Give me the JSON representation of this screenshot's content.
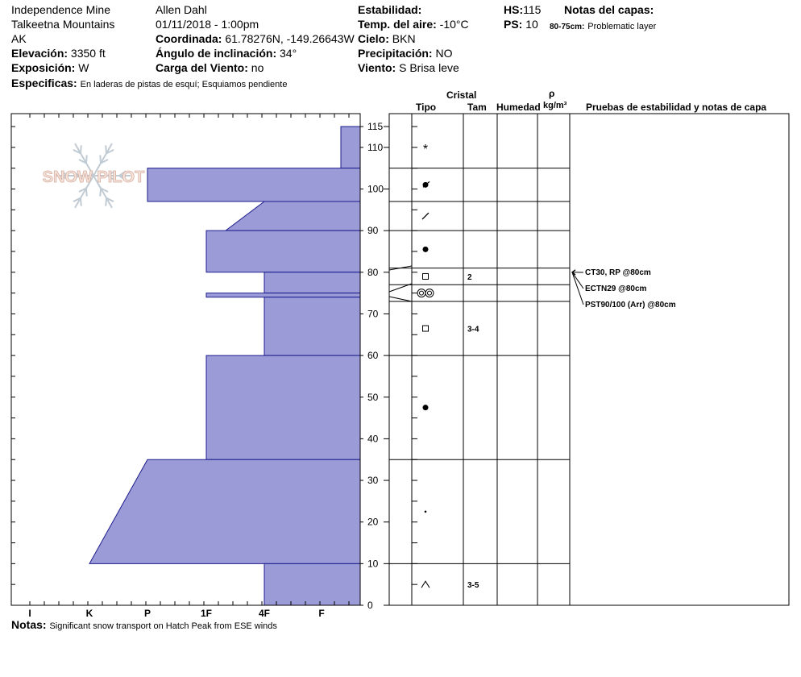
{
  "header": {
    "location": "Independence Mine",
    "range": "Talkeetna Mountains",
    "state": "AK",
    "observer": "Allen Dahl",
    "datetime": "01/11/2018 - 1:00pm",
    "elevation_label": "Elevación:",
    "elevation_value": "3350 ft",
    "aspect_label": "Exposición:",
    "aspect_value": "W",
    "specifics_label": "Especificas:",
    "specifics_value": "En laderas de pistas de esquí; Esquiamos pendiente",
    "coord_label": "Coordinada:",
    "coord_value": "61.78276N, -149.26643W",
    "slope_label": "Ángulo de inclinación:",
    "slope_value": "34°",
    "wind_load_label": "Carga del Viento:",
    "wind_load_value": "no",
    "stability_label": "Estabilidad:",
    "air_temp_label": "Temp. del aire:",
    "air_temp_value": "-10°C",
    "sky_label": "Cielo:",
    "sky_value": "BKN",
    "precip_label": "Precipitación:",
    "precip_value": "NO",
    "wind_label": "Viento:",
    "wind_value": "S Brisa leve",
    "hs_label": "HS:",
    "hs_value": "115",
    "ps_label": "PS:",
    "ps_value": "10",
    "layer_notes_label": "Notas del capas:",
    "layer_note_range": "80-75cm:",
    "layer_note_text": "Problematic layer"
  },
  "footer": {
    "notes_label": "Notas:",
    "notes_value": "Significant snow transport on Hatch Peak from ESE winds"
  },
  "logo_text": "SNOW PILOT",
  "columns": {
    "cristal": "Cristal",
    "tipo": "Tipo",
    "tam": "Tam",
    "humedad": "Humedad",
    "rho": "ρ",
    "rho_unit": "kg/m³",
    "tests": "Pruebas de estabilidad y notas de capa"
  },
  "colors": {
    "hardness_fill": "#9b9bd8",
    "hardness_stroke": "#1c1c8c"
  },
  "chart_data": {
    "type": "area",
    "x_axis": {
      "categories": [
        "I",
        "K",
        "P",
        "1F",
        "4F",
        "F"
      ]
    },
    "y_axis": {
      "range": [
        0,
        115
      ],
      "ticks": [
        0,
        10,
        20,
        30,
        40,
        50,
        60,
        70,
        80,
        90,
        100,
        110,
        115
      ]
    },
    "hardness_profile": [
      {
        "top": 115,
        "bottom": 105,
        "hardness": "F+"
      },
      {
        "top": 105,
        "bottom": 97,
        "hardness": "P"
      },
      {
        "top": 97,
        "bottom": 90,
        "hardness_top": "4F",
        "hardness_bottom": "1F+"
      },
      {
        "top": 90,
        "bottom": 80,
        "hardness": "1F"
      },
      {
        "top": 80,
        "bottom": 75,
        "hardness": "4F"
      },
      {
        "top": 75,
        "bottom": 74,
        "hardness": "1F"
      },
      {
        "top": 74,
        "bottom": 60,
        "hardness": "4F"
      },
      {
        "top": 60,
        "bottom": 35,
        "hardness": "1F"
      },
      {
        "top": 35,
        "bottom": 10,
        "hardness_top": "P",
        "hardness_bottom": "K"
      },
      {
        "top": 10,
        "bottom": 0,
        "hardness": "4F"
      }
    ],
    "layers": [
      {
        "top": 115,
        "bottom": 105,
        "grain": "stellar-icon",
        "size": ""
      },
      {
        "top": 105,
        "bottom": 97,
        "grain": "broken-crystal-icon",
        "size": ""
      },
      {
        "top": 97,
        "bottom": 90,
        "grain": "slash-icon",
        "size": ""
      },
      {
        "top": 90,
        "bottom": 81,
        "grain": "rounded-icon",
        "size": ""
      },
      {
        "top": 81,
        "bottom": 77,
        "grain": "faceted-icon",
        "size": "2"
      },
      {
        "top": 77,
        "bottom": 73,
        "grain": "melt-cluster-icon",
        "size": ""
      },
      {
        "top": 73,
        "bottom": 60,
        "grain": "faceted-icon",
        "size": "3-4"
      },
      {
        "top": 60,
        "bottom": 35,
        "grain": "rounded-icon",
        "size": ""
      },
      {
        "top": 35,
        "bottom": 10,
        "grain": "small-dot-icon",
        "size": ""
      },
      {
        "top": 10,
        "bottom": 0,
        "grain": "depth-hoar-icon",
        "size": "3-5"
      }
    ],
    "stability_tests": [
      {
        "label": "CT30, RP @80cm",
        "depth": 80
      },
      {
        "label": "ECTN29 @80cm",
        "depth": 80
      },
      {
        "label": "PST90/100 (Arr) @80cm",
        "depth": 80
      }
    ]
  }
}
